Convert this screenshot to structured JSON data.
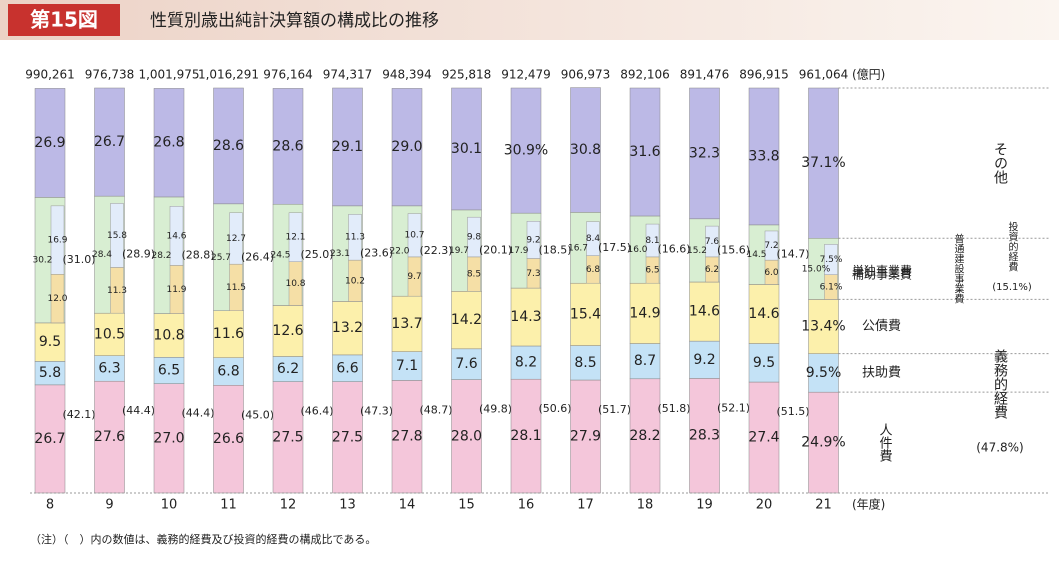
{
  "chart_data": {
    "type": "stacked_bar",
    "figure_label": "第15図",
    "title": "性質別歳出純計決算額の構成比の推移",
    "categories": [
      "8",
      "9",
      "10",
      "11",
      "12",
      "13",
      "14",
      "15",
      "16",
      "17",
      "18",
      "19",
      "20",
      "21"
    ],
    "x_unit": "(年度)",
    "totals": {
      "unit": "(億円)",
      "values": [
        990261,
        976738,
        1001975,
        1016291,
        976164,
        974317,
        948394,
        925818,
        912479,
        906973,
        892106,
        891476,
        896915,
        961064
      ],
      "value_labels": [
        "990,261",
        "976,738",
        "1,001,975",
        "1,016,291",
        "976,164",
        "974,317",
        "948,394",
        "925,818",
        "912,479",
        "906,973",
        "892,106",
        "891,476",
        "896,915",
        "961,064"
      ]
    },
    "ylim": [
      0,
      100
    ],
    "series": [
      {
        "name": "人件費",
        "color": "#f4c6da",
        "values": [
          26.7,
          27.6,
          27.0,
          26.6,
          27.5,
          27.5,
          27.8,
          28.0,
          28.1,
          27.9,
          28.2,
          28.3,
          27.4,
          24.9
        ],
        "value_labels": [
          "26.7",
          "27.6",
          "27.0",
          "26.6",
          "27.5",
          "27.5",
          "27.8",
          "28.0",
          "28.1",
          "27.9",
          "28.2",
          "28.3",
          "27.4",
          "24.9%"
        ]
      },
      {
        "name": "扶助費",
        "color": "#c4e2f6",
        "values": [
          5.8,
          6.3,
          6.5,
          6.8,
          6.2,
          6.6,
          7.1,
          7.6,
          8.2,
          8.5,
          8.7,
          9.2,
          9.5,
          9.5
        ],
        "value_labels": [
          "5.8",
          "6.3",
          "6.5",
          "6.8",
          "6.2",
          "6.6",
          "7.1",
          "7.6",
          "8.2",
          "8.5",
          "8.7",
          "9.2",
          "9.5",
          "9.5%"
        ]
      },
      {
        "name": "公債費",
        "color": "#fcf0ab",
        "values": [
          9.5,
          10.5,
          10.8,
          11.6,
          12.6,
          13.2,
          13.7,
          14.2,
          14.3,
          15.4,
          14.9,
          14.6,
          14.6,
          13.4
        ],
        "value_labels": [
          "9.5",
          "10.5",
          "10.8",
          "11.6",
          "12.6",
          "13.2",
          "13.7",
          "14.2",
          "14.3",
          "15.4",
          "14.9",
          "14.6",
          "14.6",
          "13.4%"
        ]
      },
      {
        "name": "投資的経費",
        "color": "#d8eed2",
        "values": [
          31.0,
          28.9,
          28.8,
          26.4,
          25.0,
          23.6,
          22.3,
          20.1,
          18.5,
          17.5,
          16.6,
          15.6,
          14.7,
          15.1
        ],
        "value_labels": [
          "(31.0)",
          "(28.9)",
          "(28.8)",
          "(26.4)",
          "(25.0)",
          "(23.6)",
          "(22.3)",
          "(20.1)",
          "(18.5)",
          "(17.5)",
          "(16.6)",
          "(15.6)",
          "(14.7)",
          "(15.1%)"
        ]
      },
      {
        "name": "その他",
        "color": "#bcb9e6",
        "values": [
          26.9,
          26.7,
          26.8,
          28.6,
          28.6,
          29.1,
          29.0,
          30.1,
          30.9,
          30.8,
          31.6,
          32.3,
          33.8,
          37.1
        ],
        "value_labels": [
          "26.9",
          "26.7",
          "26.8",
          "28.6",
          "28.6",
          "29.1",
          "29.0",
          "30.1",
          "30.9%",
          "30.8",
          "31.6",
          "32.3",
          "33.8",
          "37.1%"
        ]
      }
    ],
    "breakdown": [
      {
        "name": "補助事業費",
        "color": "#f5dfa6",
        "values": [
          12.0,
          11.3,
          11.9,
          11.5,
          10.8,
          10.2,
          9.7,
          8.5,
          7.3,
          6.8,
          6.5,
          6.2,
          6.0,
          6.1
        ],
        "value_labels": [
          "12.0",
          "11.3",
          "11.9",
          "11.5",
          "10.8",
          "10.2",
          "9.7",
          "8.5",
          "7.3",
          "6.8",
          "6.5",
          "6.2",
          "6.0",
          "6.1%"
        ]
      },
      {
        "name": "単独事業費",
        "color": "#e2ecfa",
        "values": [
          16.9,
          15.8,
          14.6,
          12.7,
          12.1,
          11.3,
          10.7,
          9.8,
          9.2,
          8.4,
          8.1,
          7.6,
          7.2,
          7.5
        ],
        "value_labels": [
          "16.9",
          "15.8",
          "14.6",
          "12.7",
          "12.1",
          "11.3",
          "10.7",
          "9.8",
          "9.2",
          "8.4",
          "8.1",
          "7.6",
          "7.2",
          "7.5%"
        ]
      },
      {
        "name": "普通建設事業費",
        "values": [
          30.2,
          28.4,
          28.2,
          25.7,
          24.5,
          23.1,
          22.0,
          19.7,
          17.9,
          16.7,
          16.0,
          15.2,
          14.5,
          15.0
        ],
        "value_labels": [
          "30.2",
          "28.4",
          "28.2",
          "25.7",
          "24.5",
          "23.1",
          "22.0",
          "19.7",
          "17.9",
          "16.7",
          "16.0",
          "15.2",
          "14.5",
          "15.0%"
        ]
      }
    ],
    "obligatory": {
      "name": "義務的経費",
      "values": [
        42.1,
        44.4,
        44.4,
        45.0,
        46.4,
        47.3,
        48.7,
        49.8,
        50.6,
        51.7,
        51.8,
        52.1,
        51.5,
        47.8
      ],
      "value_labels": [
        "(42.1)",
        "(44.4)",
        "(44.4)",
        "(45.0)",
        "(46.4)",
        "(47.3)",
        "(48.7)",
        "(49.8)",
        "(50.6)",
        "(51.7)",
        "(51.8)",
        "(52.1)",
        "(51.5)",
        "(47.8%)"
      ]
    },
    "note": "（注）（　）内の数値は、義務的経費及び投資的経費の構成比である。"
  }
}
